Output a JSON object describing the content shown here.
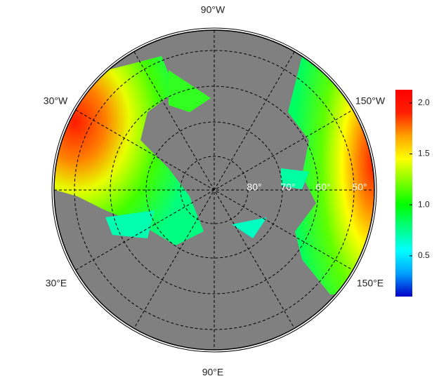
{
  "map": {
    "meridian_labels": [
      "90°W",
      "30°W",
      "150°W",
      "30°E",
      "150°E",
      "90°E"
    ],
    "parallel_labels": [
      "80°",
      "70°",
      "60°",
      "50°"
    ],
    "colorbar": {
      "range": [
        0.1,
        2.13
      ],
      "ticks": [
        0.5,
        {
          "value": 1,
          "label": "1.0"
        },
        1.5,
        {
          "value": 2,
          "label": "2.0"
        }
      ],
      "colors": [
        "#0000c8",
        "#00a0ff",
        "#00ffff",
        "#00ff80",
        "#00ff00",
        "#80ff00",
        "#ffff00",
        "#ffa000",
        "#ff2000",
        "#ff0000"
      ]
    }
  }
}
